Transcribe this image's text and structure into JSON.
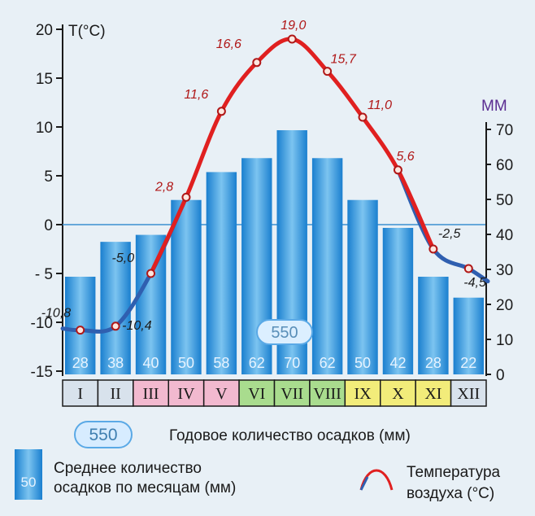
{
  "chart_data": {
    "type": "bar+line",
    "categories": [
      "I",
      "II",
      "III",
      "IV",
      "V",
      "VI",
      "VII",
      "VIII",
      "IX",
      "X",
      "XI",
      "XII"
    ],
    "precipitation": {
      "name": "Среднее количество осадков по месяцам (мм)",
      "values": [
        28,
        38,
        40,
        50,
        58,
        62,
        70,
        62,
        50,
        42,
        28,
        22
      ],
      "axis_title": "ММ",
      "ylim": [
        0,
        70
      ],
      "ticks": [
        "0",
        "10",
        "20",
        "30",
        "40",
        "50",
        "60",
        "70"
      ]
    },
    "temperature": {
      "name": "Температура воздуха (°C)",
      "values": [
        -10.8,
        -10.4,
        -5.0,
        2.8,
        11.6,
        16.6,
        19.0,
        15.7,
        11.0,
        5.6,
        -2.5,
        -4.5
      ],
      "labels": [
        "-10,8",
        "-10,4",
        "-5,0",
        "2,8",
        "11,6",
        "16,6",
        "19,0",
        "15,7",
        "11,0",
        "5,6",
        "-2,5",
        "-4,5"
      ],
      "axis_title": "T(°C)",
      "ylim": [
        -15,
        20
      ],
      "ticks": [
        "20",
        "15",
        "10",
        "5",
        "0",
        "- 5",
        "-10",
        "-15"
      ]
    },
    "annual_total": "550",
    "month_colors": [
      "#d8e2ec",
      "#d8e2ec",
      "#f2b9cf",
      "#f2b9cf",
      "#f2b9cf",
      "#a9dc8e",
      "#a9dc8e",
      "#a9dc8e",
      "#f2ec7a",
      "#f2ec7a",
      "#f2ec7a",
      "#d8e2ec"
    ],
    "colors": {
      "bar": "#1f8fd6",
      "temp_warm": "#e02020",
      "temp_cold": "#2f5fb0"
    },
    "grid": false
  },
  "legend": {
    "total_badge": "550",
    "total_text": "Годовое количество осадков (мм)",
    "bar_sample": "50",
    "bar_text_line1": "Среднее количество",
    "bar_text_line2": "осадков по месяцам (мм)",
    "temp_text_line1": "Температура",
    "temp_text_line2": "воздуха (°C)"
  }
}
